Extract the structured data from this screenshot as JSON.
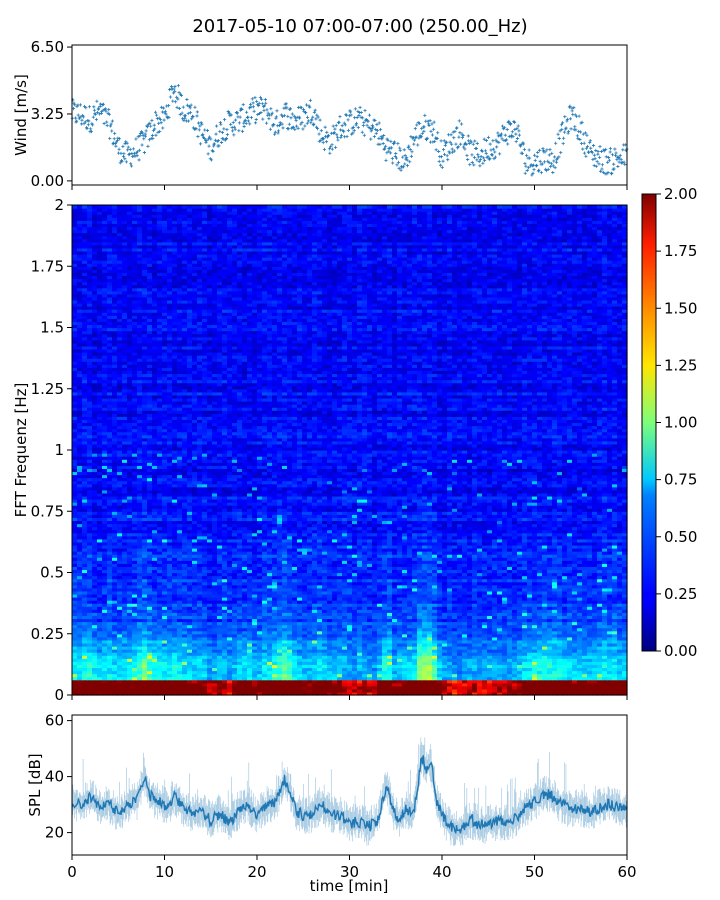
{
  "figure": {
    "title": "2017-05-10 07:00-07:00 (250.00_Hz)"
  },
  "chart_data": [
    {
      "type": "scatter",
      "panel": "wind",
      "ylabel": "Wind [m/s]",
      "xlim": [
        0,
        60
      ],
      "ylim": [
        -0.2,
        6.6
      ],
      "yticks": [
        "0.00",
        "3.25",
        "6.50"
      ],
      "ytick_values": [
        0,
        3.25,
        6.5
      ],
      "show_x_ticklabels": false,
      "marker": "+",
      "color": "#1f77b4",
      "series": [
        {
          "x_minutes": [
            0,
            1,
            2,
            3,
            4,
            5,
            6,
            7,
            8,
            9,
            10,
            11,
            12,
            13,
            14,
            15,
            16,
            17,
            18,
            19,
            20,
            21,
            22,
            23,
            24,
            25,
            26,
            27,
            28,
            29,
            30,
            31,
            32,
            33,
            34,
            35,
            36,
            37,
            38,
            39,
            40,
            41,
            42,
            43,
            44,
            45,
            46,
            47,
            48,
            49,
            50,
            51,
            52,
            53,
            54,
            55,
            56,
            57,
            58,
            59,
            60
          ],
          "values": [
            3.3,
            3.2,
            3.0,
            3.4,
            2.8,
            1.6,
            1.2,
            1.5,
            2.0,
            2.8,
            3.0,
            4.5,
            3.5,
            3.3,
            2.3,
            1.6,
            2.4,
            2.8,
            2.9,
            3.2,
            3.5,
            3.4,
            2.7,
            3.3,
            2.9,
            3.1,
            3.5,
            2.2,
            1.9,
            2.6,
            2.8,
            3.0,
            2.7,
            2.4,
            1.6,
            1.3,
            0.9,
            2.1,
            2.6,
            2.5,
            1.2,
            1.9,
            2.4,
            1.4,
            1.2,
            1.6,
            1.8,
            2.4,
            2.5,
            1.0,
            0.9,
            1.1,
            1.0,
            2.2,
            3.2,
            2.4,
            1.4,
            1.1,
            0.9,
            1.1,
            1.2
          ]
        }
      ]
    },
    {
      "type": "heatmap",
      "panel": "spectrogram",
      "ylabel": "FFT Frequenz [Hz]",
      "xlim": [
        0,
        60
      ],
      "ylim": [
        0,
        2
      ],
      "yticks": [
        "0",
        "0.25",
        "0.5",
        "0.75",
        "1",
        "1.25",
        "1.5",
        "1.75",
        "2"
      ],
      "ytick_values": [
        0,
        0.25,
        0.5,
        0.75,
        1,
        1.25,
        1.5,
        1.75,
        2
      ],
      "colormap": "jet",
      "colorbar": {
        "vmin": 0,
        "vmax": 2,
        "ticks": [
          "0.00",
          "0.25",
          "0.50",
          "0.75",
          "1.00",
          "1.25",
          "1.50",
          "1.75",
          "2.00"
        ],
        "tick_values": [
          0,
          0.25,
          0.5,
          0.75,
          1,
          1.25,
          1.5,
          1.75,
          2
        ]
      },
      "show_x_ticklabels": false
    },
    {
      "type": "line",
      "panel": "spl",
      "ylabel": "SPL [dB]",
      "xlabel": "time [min]",
      "xlim": [
        0,
        60
      ],
      "ylim": [
        12,
        62
      ],
      "yticks": [
        "20",
        "40",
        "60"
      ],
      "ytick_values": [
        20,
        40,
        60
      ],
      "xticks": [
        "0",
        "10",
        "20",
        "30",
        "40",
        "50",
        "60"
      ],
      "xtick_values": [
        0,
        10,
        20,
        30,
        40,
        50,
        60
      ],
      "color": "#1f77b4",
      "series": [
        {
          "x_minutes": [
            0,
            1,
            2,
            3,
            4,
            5,
            6,
            7,
            7.8,
            8.5,
            9.5,
            10.5,
            11,
            12,
            13,
            14,
            15,
            16,
            17,
            18,
            19,
            20,
            21,
            22,
            23,
            23.6,
            24.2,
            25,
            26,
            27,
            28,
            29,
            30,
            31,
            32,
            33,
            34,
            34.8,
            35.5,
            36,
            37,
            37.8,
            38.3,
            38.8,
            39.5,
            40.2,
            41,
            42,
            43,
            44,
            45,
            46,
            47,
            48,
            49,
            50,
            51,
            52,
            53,
            54,
            55,
            56,
            57,
            58,
            59,
            60
          ],
          "values": [
            31,
            30,
            33,
            29,
            30,
            27,
            30,
            31,
            40,
            33,
            31,
            29,
            33,
            29,
            27,
            28,
            24,
            27,
            23,
            28,
            30,
            26,
            29,
            31,
            39,
            35,
            28,
            26,
            27,
            30,
            27,
            26,
            23,
            24,
            22,
            24,
            37,
            27,
            25,
            28,
            28,
            47,
            43,
            45,
            30,
            25,
            22,
            21,
            25,
            23,
            23,
            24,
            23,
            25,
            29,
            31,
            34,
            33,
            30,
            28,
            29,
            27,
            29,
            30,
            29,
            28
          ]
        }
      ]
    }
  ]
}
